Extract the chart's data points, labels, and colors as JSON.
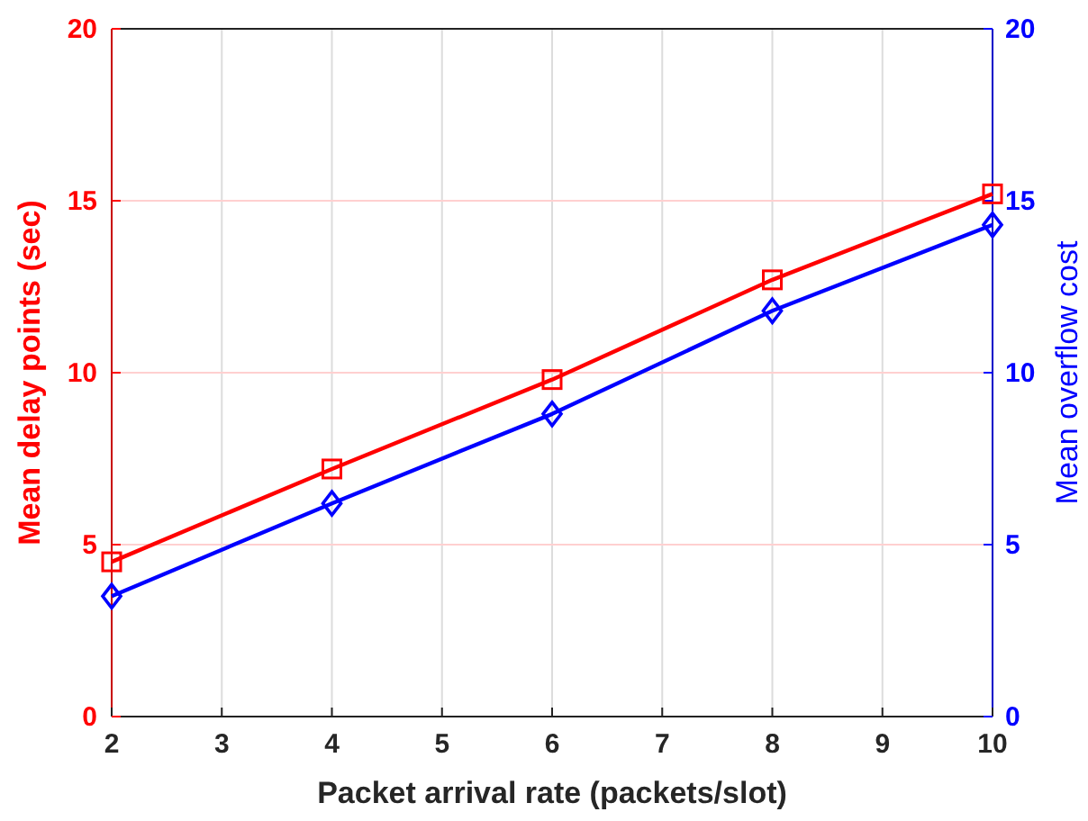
{
  "chart_data": {
    "type": "line",
    "xlabel": "Packet arrival rate (packets/slot)",
    "ylabel": "Mean delay points (sec)",
    "y2label": "Mean overflow cost",
    "x": [
      2,
      4,
      6,
      8,
      10
    ],
    "series": [
      {
        "name": null,
        "color": "#ff0000",
        "values": [
          4.5,
          7.2,
          9.8,
          12.7,
          15.2
        ],
        "marker": "square"
      },
      {
        "color": "#0000ff",
        "values": [
          3.5,
          6.2,
          8.8,
          11.8,
          14.3
        ],
        "marker": "diamond",
        "axis": "y2"
      }
    ],
    "xlim": [
      2,
      10
    ],
    "xticks": [
      2,
      3,
      4,
      5,
      6,
      7,
      8,
      9,
      10
    ],
    "ylim": [
      0,
      20
    ],
    "yticks": [
      0,
      5,
      10,
      15,
      20
    ],
    "y2lim": [
      0,
      20
    ],
    "y2ticks": [
      0,
      5,
      10,
      15,
      20
    ],
    "grid": true,
    "line_style": "solid"
  }
}
